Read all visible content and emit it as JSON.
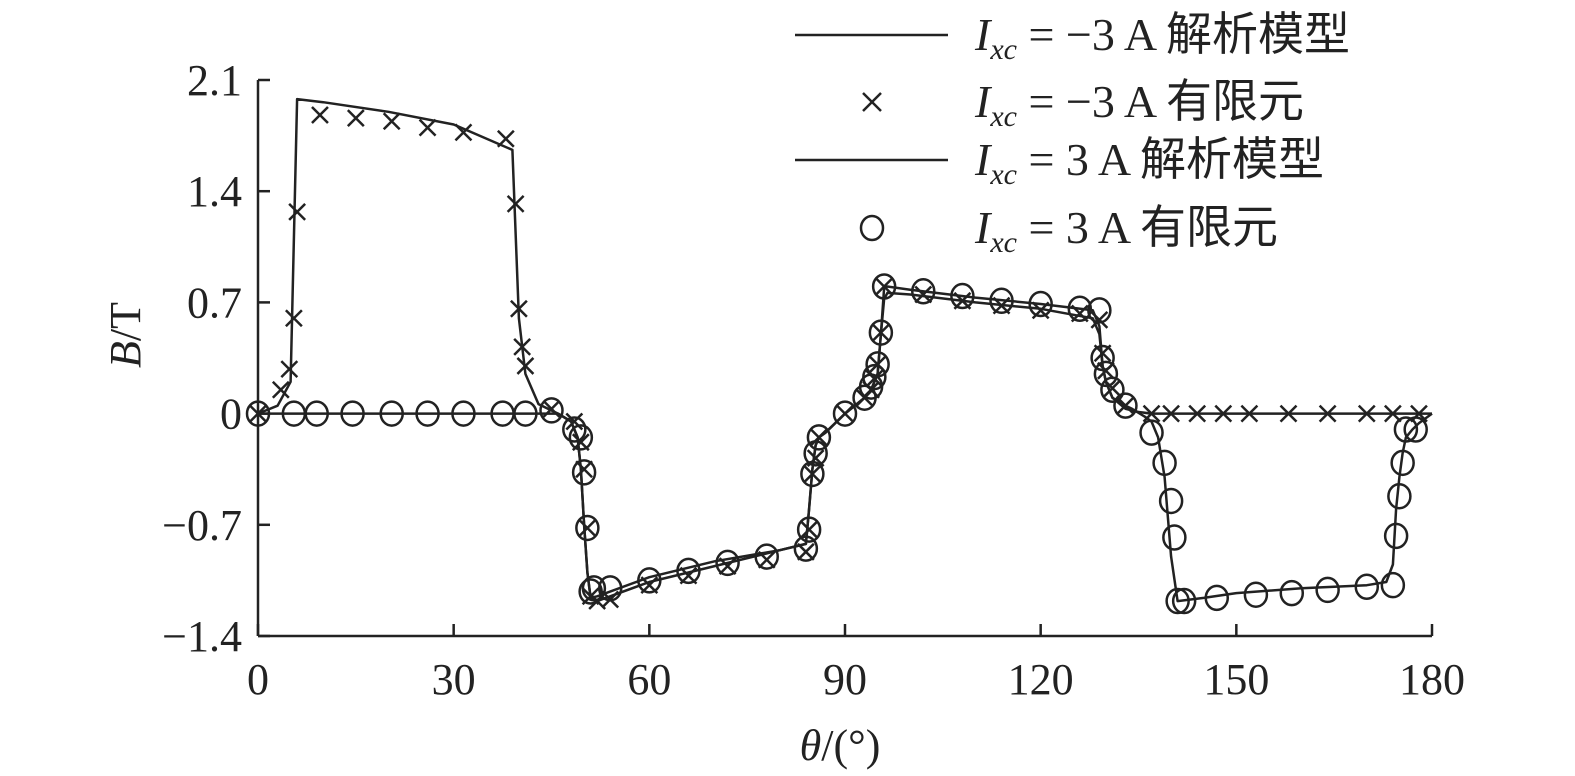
{
  "chart_data": {
    "type": "line",
    "xlabel_var": "θ",
    "xlabel_unit": "/(°)",
    "ylabel_var": "B",
    "ylabel_unit": "/T",
    "xlim": [
      0,
      180
    ],
    "ylim": [
      -1.4,
      2.1
    ],
    "xticks": [
      0,
      30,
      60,
      90,
      120,
      150,
      180
    ],
    "yticks": [
      -1.4,
      -0.7,
      0,
      0.7,
      1.4,
      2.1
    ],
    "ytick_labels": [
      "−1.4",
      "−0.7",
      "0",
      "0.7",
      "1.4",
      "2.1"
    ],
    "legend_position": "top-right",
    "grid": false,
    "series": [
      {
        "name_var": "I",
        "name_sub": "xc",
        "name_rest": " = −3 A 解析模型",
        "style": "line",
        "color": "#222222",
        "x": [
          0,
          3,
          5,
          6,
          10,
          20,
          30,
          39,
          40,
          41,
          43,
          46,
          48,
          49,
          49.5,
          50,
          50.5,
          51,
          52,
          60,
          70,
          80,
          84,
          84.5,
          85,
          85.5,
          86,
          87,
          90,
          93,
          94,
          95,
          95.5,
          96,
          96.5,
          100,
          110,
          120,
          128,
          129,
          129.5,
          130,
          131,
          133,
          135,
          137,
          140,
          150,
          160,
          170,
          180
        ],
        "y": [
          0,
          0.05,
          0.2,
          1.98,
          1.96,
          1.9,
          1.82,
          1.66,
          0.6,
          0.25,
          0.06,
          0.0,
          -0.05,
          -0.15,
          -0.35,
          -0.7,
          -1.0,
          -1.16,
          -1.18,
          -1.06,
          -0.96,
          -0.86,
          -0.82,
          -0.6,
          -0.35,
          -0.2,
          -0.15,
          -0.12,
          0.0,
          0.1,
          0.15,
          0.25,
          0.5,
          0.72,
          0.76,
          0.75,
          0.7,
          0.66,
          0.6,
          0.5,
          0.3,
          0.2,
          0.1,
          0.03,
          0.01,
          0.0,
          0.0,
          0.0,
          0.0,
          0.0,
          0.0
        ]
      },
      {
        "name_var": "I",
        "name_sub": "xc",
        "name_rest": " = −3 A 有限元",
        "style": "x-marker",
        "color": "#222222",
        "x": [
          0,
          3.5,
          4.8,
          5.5,
          6,
          9.5,
          15,
          20.5,
          26,
          31.5,
          38,
          39.5,
          40,
          40.5,
          41,
          45,
          48.5,
          49.5,
          50,
          50.5,
          51,
          52,
          54,
          60,
          66,
          72,
          78,
          84,
          84.5,
          85,
          85.5,
          86,
          90,
          93,
          94,
          94.5,
          95,
          95.5,
          96,
          102,
          108,
          114,
          120,
          126,
          129,
          129.5,
          130,
          131,
          133,
          137,
          140,
          144,
          148,
          152,
          158,
          164,
          170,
          174,
          178
        ],
        "y": [
          0.0,
          0.15,
          0.28,
          0.6,
          1.27,
          1.88,
          1.86,
          1.84,
          1.8,
          1.77,
          1.73,
          1.32,
          0.66,
          0.42,
          0.3,
          0.03,
          -0.05,
          -0.18,
          -0.35,
          -0.72,
          -1.15,
          -1.18,
          -1.17,
          -1.08,
          -1.02,
          -0.96,
          -0.92,
          -0.87,
          -0.73,
          -0.38,
          -0.28,
          -0.15,
          0.0,
          0.1,
          0.15,
          0.22,
          0.31,
          0.51,
          0.8,
          0.75,
          0.71,
          0.68,
          0.65,
          0.63,
          0.59,
          0.38,
          0.27,
          0.16,
          0.05,
          0.0,
          0.0,
          0.0,
          0.0,
          0.0,
          0.0,
          0.0,
          0.0,
          0.0,
          0.0
        ]
      },
      {
        "name_var": "I",
        "name_sub": "xc",
        "name_rest": " = 3 A 解析模型",
        "style": "line",
        "color": "#222222",
        "x": [
          0,
          10,
          20,
          30,
          40,
          44,
          46,
          48,
          49,
          49.5,
          50,
          50.5,
          51,
          52,
          60,
          70,
          80,
          84,
          84.5,
          85,
          85.5,
          86,
          87,
          90,
          93,
          94,
          95,
          95.5,
          96,
          96.5,
          100,
          110,
          120,
          128,
          129,
          129.5,
          130,
          131,
          133,
          134,
          136,
          137,
          138,
          139,
          140,
          141,
          145,
          150,
          160,
          170,
          173,
          174,
          174.5,
          175,
          175.5,
          176,
          177,
          178,
          180
        ],
        "y": [
          0,
          0,
          0,
          0,
          0,
          0,
          0.0,
          -0.05,
          -0.15,
          -0.35,
          -0.7,
          -1.0,
          -1.16,
          -1.15,
          -1.03,
          -0.93,
          -0.86,
          -0.82,
          -0.6,
          -0.35,
          -0.2,
          -0.15,
          -0.12,
          0.0,
          0.1,
          0.15,
          0.25,
          0.5,
          0.79,
          0.8,
          0.78,
          0.73,
          0.69,
          0.65,
          0.55,
          0.3,
          0.2,
          0.1,
          0.05,
          0.03,
          -0.02,
          -0.05,
          -0.15,
          -0.4,
          -0.9,
          -1.18,
          -1.16,
          -1.13,
          -1.1,
          -1.08,
          -1.06,
          -0.95,
          -0.6,
          -0.4,
          -0.25,
          -0.15,
          -0.1,
          -0.06,
          0.0
        ]
      },
      {
        "name_var": "I",
        "name_sub": "xc",
        "name_rest": " = 3 A 有限元",
        "style": "circle-marker",
        "color": "#222222",
        "x": [
          0,
          5.5,
          9,
          14.5,
          20.5,
          26,
          31.5,
          37.5,
          41,
          45,
          48.5,
          49.5,
          50,
          50.5,
          51,
          51.5,
          54,
          60,
          66,
          72,
          78,
          84,
          84.5,
          85,
          85.5,
          86,
          90,
          93,
          94,
          94.5,
          95,
          95.5,
          96,
          102,
          108,
          114,
          120,
          126,
          129,
          129.5,
          130,
          131,
          133,
          137,
          139,
          140,
          140.5,
          141,
          142,
          147,
          153,
          158.5,
          164,
          170,
          174,
          174.5,
          175,
          175.5,
          176,
          177.5
        ],
        "y": [
          0.0,
          0.0,
          0.0,
          0.0,
          0.0,
          0.0,
          0.0,
          0.0,
          0.0,
          0.02,
          -0.1,
          -0.15,
          -0.37,
          -0.72,
          -1.12,
          -1.1,
          -1.1,
          -1.05,
          -0.99,
          -0.94,
          -0.9,
          -0.85,
          -0.73,
          -0.38,
          -0.25,
          -0.15,
          0.0,
          0.1,
          0.17,
          0.23,
          0.31,
          0.51,
          0.8,
          0.77,
          0.74,
          0.71,
          0.69,
          0.66,
          0.65,
          0.35,
          0.25,
          0.15,
          0.05,
          -0.12,
          -0.31,
          -0.55,
          -0.78,
          -1.18,
          -1.18,
          -1.16,
          -1.14,
          -1.13,
          -1.11,
          -1.09,
          -1.08,
          -0.77,
          -0.52,
          -0.31,
          -0.1,
          -0.1
        ]
      }
    ]
  }
}
